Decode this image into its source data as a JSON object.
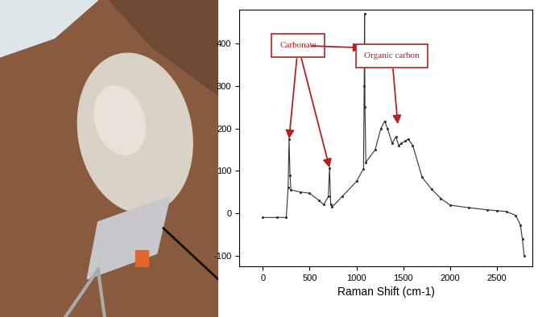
{
  "chart_data": {
    "type": "line",
    "xlabel": "Raman Shift (cm-1)",
    "x": [
      0,
      150,
      250,
      270,
      280,
      290,
      300,
      400,
      500,
      600,
      650,
      700,
      712,
      725,
      740,
      850,
      1000,
      1075,
      1082,
      1086,
      1090,
      1100,
      1200,
      1260,
      1300,
      1330,
      1380,
      1420,
      1450,
      1480,
      1520,
      1550,
      1600,
      1700,
      1800,
      1900,
      2000,
      2200,
      2400,
      2500,
      2600,
      2700,
      2750,
      2770,
      2790
    ],
    "values": [
      -10,
      -10,
      -10,
      60,
      175,
      90,
      55,
      50,
      47,
      30,
      20,
      40,
      107,
      20,
      15,
      40,
      75,
      105,
      300,
      470,
      250,
      120,
      150,
      200,
      217,
      200,
      165,
      180,
      160,
      165,
      170,
      175,
      160,
      85,
      57,
      35,
      19,
      13,
      8,
      6,
      4,
      -5,
      -28,
      -60,
      -100
    ],
    "color": "#333333",
    "marker": "point",
    "line_style": "solid",
    "xlim": [
      -250,
      2880
    ],
    "ylim": [
      -125,
      480
    ],
    "xticks": [
      0,
      500,
      1000,
      1500,
      2000,
      2500
    ],
    "yticks": [
      -100,
      0,
      100,
      200,
      300,
      400
    ],
    "annotations": [
      {
        "text": "Carbonate",
        "points": [
          [
            280,
            175
          ],
          [
            712,
            107
          ],
          [
            1060,
            390
          ]
        ]
      },
      {
        "text": "Organic carbon",
        "points": [
          [
            1440,
            210
          ]
        ]
      }
    ]
  }
}
